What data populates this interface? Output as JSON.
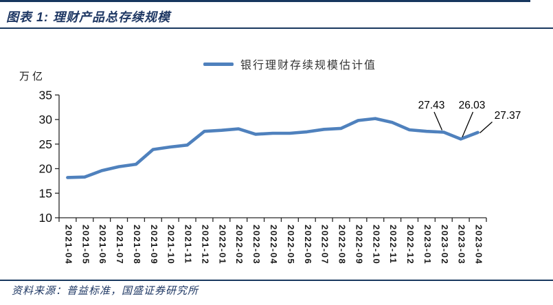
{
  "header": {
    "title": "图表 1: 理财产品总存续规模"
  },
  "footer": {
    "source": "资料来源：普益标准，国盛证券研究所"
  },
  "colors": {
    "line": "#4F81BD",
    "navy_text": "#1F3864",
    "rule": "#17375E",
    "axis": "#262626"
  },
  "chart_data": {
    "type": "line",
    "title": "理财产品总存续规模",
    "legend": "银行理财存续规模估计值",
    "legend_position": "top-center",
    "ylabel": "万亿",
    "xlabel": "",
    "grid": false,
    "ylim": [
      10,
      35
    ],
    "yticks": [
      10,
      15,
      20,
      25,
      30,
      35
    ],
    "line_color": "#4F81BD",
    "categories": [
      "2021-04",
      "2021-05",
      "2021-06",
      "2021-07",
      "2021-08",
      "2021-09",
      "2021-10",
      "2021-11",
      "2021-12",
      "2022-01",
      "2022-02",
      "2022-03",
      "2022-04",
      "2022-05",
      "2022-06",
      "2022-07",
      "2022-08",
      "2022-09",
      "2022-10",
      "2022-11",
      "2022-12",
      "2023-01",
      "2023-02",
      "2023-03",
      "2023-04"
    ],
    "values": [
      18.2,
      18.3,
      19.6,
      20.4,
      20.9,
      23.9,
      24.4,
      24.8,
      27.6,
      27.8,
      28.1,
      27.0,
      27.2,
      27.2,
      27.5,
      28.0,
      28.2,
      29.8,
      30.2,
      29.4,
      27.9,
      27.6,
      27.43,
      26.03,
      27.37
    ],
    "annotations": [
      {
        "text": "27.43",
        "category": "2023-02",
        "value": 27.43
      },
      {
        "text": "26.03",
        "category": "2023-03",
        "value": 26.03
      },
      {
        "text": "27.37",
        "category": "2023-04",
        "value": 27.37
      }
    ]
  }
}
